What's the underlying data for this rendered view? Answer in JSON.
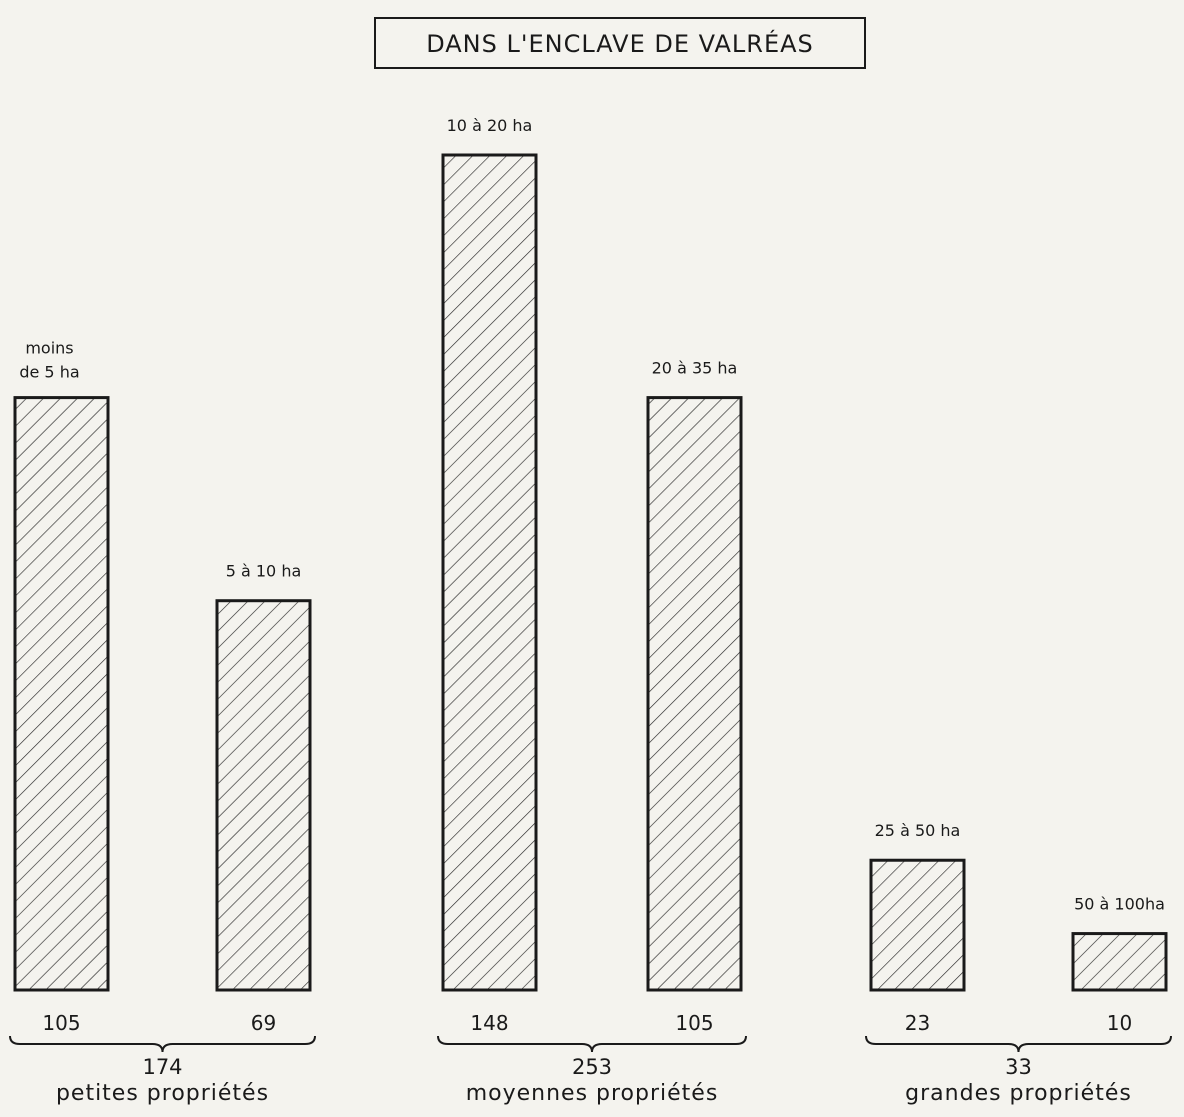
{
  "chart_data": {
    "type": "bar",
    "title": "DANS  L'ENCLAVE DE VALRÉAS",
    "xlabel": "",
    "ylabel": "",
    "ylim": [
      0,
      148
    ],
    "grid": false,
    "legend": "none",
    "categories": [
      "moins de 5 ha",
      "5 à 10 ha",
      "10 à 20 ha",
      "20 à 35 ha",
      "25 à 50 ha",
      "50 à 100ha"
    ],
    "values": [
      105,
      69,
      148,
      105,
      23,
      10
    ],
    "groups": [
      {
        "total": "174",
        "name": "petites propriétés",
        "members": [
          0,
          1
        ]
      },
      {
        "total": "253",
        "name": "moyennes propriétés",
        "members": [
          2,
          3
        ]
      },
      {
        "total": "33",
        "name": "grandes propriétés",
        "members": [
          4,
          5
        ]
      }
    ]
  }
}
